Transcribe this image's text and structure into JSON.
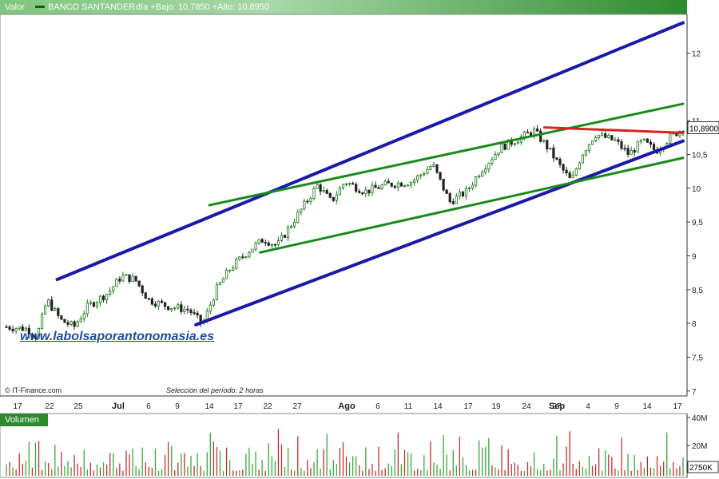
{
  "header": {
    "valor_label": "Valor",
    "ticker": "BANCO SANTANDER",
    "day_info": "día +Bajo: 10,7850 +Alto: 10,8950"
  },
  "watermark": "www.labolsaporantonomasia.es",
  "credit": "© IT-Finance.com",
  "period_note": "Selección del período: 2 horas",
  "volume_label": "Volumen",
  "colors": {
    "up": "#1a7a1a",
    "down": "#222222",
    "channel": "#1a1aa8",
    "trend": "#1a8a1a",
    "resistance": "#e02020",
    "vol_up": "#3aa83a",
    "vol_down": "#c03030"
  },
  "chart_data": {
    "type": "candlestick",
    "title": "BANCO SANTANDER",
    "price_axis": {
      "ticks": [
        "7",
        "7,5",
        "8",
        "8,5",
        "9",
        "9,5",
        "10",
        "10,5",
        "11",
        "12"
      ],
      "ylim": [
        6.95,
        12.55
      ]
    },
    "last_price_label": "10,8900",
    "last_price": 10.89,
    "x_tick_labels": [
      "17",
      "22",
      "25",
      "Jul",
      "6",
      "9",
      "14",
      "17",
      "22",
      "27",
      "Ago",
      "6",
      "11",
      "14",
      "17",
      "19",
      "24",
      "27",
      "Sep",
      "4",
      "9",
      "14",
      "17"
    ],
    "volume_axis": {
      "ticks": [
        "40M",
        "20M"
      ],
      "current_label": "2750K"
    },
    "price_path": [
      {
        "t": 0,
        "p": 7.95
      },
      {
        "t": 0.03,
        "p": 7.92
      },
      {
        "t": 0.045,
        "p": 7.8
      },
      {
        "t": 0.06,
        "p": 8.35
      },
      {
        "t": 0.08,
        "p": 8.05
      },
      {
        "t": 0.1,
        "p": 7.95
      },
      {
        "t": 0.12,
        "p": 8.25
      },
      {
        "t": 0.15,
        "p": 8.45
      },
      {
        "t": 0.17,
        "p": 8.7
      },
      {
        "t": 0.19,
        "p": 8.65
      },
      {
        "t": 0.21,
        "p": 8.35
      },
      {
        "t": 0.24,
        "p": 8.25
      },
      {
        "t": 0.27,
        "p": 8.2
      },
      {
        "t": 0.29,
        "p": 7.98
      },
      {
        "t": 0.31,
        "p": 8.5
      },
      {
        "t": 0.33,
        "p": 8.8
      },
      {
        "t": 0.355,
        "p": 9.05
      },
      {
        "t": 0.38,
        "p": 9.25
      },
      {
        "t": 0.4,
        "p": 9.15
      },
      {
        "t": 0.43,
        "p": 9.6
      },
      {
        "t": 0.46,
        "p": 10.05
      },
      {
        "t": 0.48,
        "p": 9.8
      },
      {
        "t": 0.5,
        "p": 10.1
      },
      {
        "t": 0.53,
        "p": 9.95
      },
      {
        "t": 0.56,
        "p": 10.05
      },
      {
        "t": 0.6,
        "p": 10.1
      },
      {
        "t": 0.63,
        "p": 10.35
      },
      {
        "t": 0.655,
        "p": 9.8
      },
      {
        "t": 0.68,
        "p": 9.95
      },
      {
        "t": 0.7,
        "p": 10.25
      },
      {
        "t": 0.73,
        "p": 10.6
      },
      {
        "t": 0.75,
        "p": 10.7
      },
      {
        "t": 0.78,
        "p": 10.85
      },
      {
        "t": 0.8,
        "p": 10.6
      },
      {
        "t": 0.82,
        "p": 10.3
      },
      {
        "t": 0.835,
        "p": 10.1
      },
      {
        "t": 0.85,
        "p": 10.5
      },
      {
        "t": 0.87,
        "p": 10.8
      },
      {
        "t": 0.9,
        "p": 10.7
      },
      {
        "t": 0.92,
        "p": 10.5
      },
      {
        "t": 0.94,
        "p": 10.7
      },
      {
        "t": 0.96,
        "p": 10.55
      },
      {
        "t": 0.98,
        "p": 10.75
      },
      {
        "t": 1.0,
        "p": 10.89
      }
    ],
    "trendlines": [
      {
        "role": "channel",
        "from": {
          "t": 0.075,
          "p": 8.65
        },
        "to": {
          "t": 1.0,
          "p": 12.45
        }
      },
      {
        "role": "channel",
        "from": {
          "t": 0.28,
          "p": 7.98
        },
        "to": {
          "t": 1.0,
          "p": 10.7
        }
      },
      {
        "role": "trend",
        "from": {
          "t": 0.3,
          "p": 9.75
        },
        "to": {
          "t": 1.0,
          "p": 11.25
        }
      },
      {
        "role": "trend",
        "from": {
          "t": 0.375,
          "p": 9.05
        },
        "to": {
          "t": 1.0,
          "p": 10.45
        }
      },
      {
        "role": "resistance",
        "from": {
          "t": 0.795,
          "p": 10.9
        },
        "to": {
          "t": 1.0,
          "p": 10.82
        }
      }
    ]
  }
}
